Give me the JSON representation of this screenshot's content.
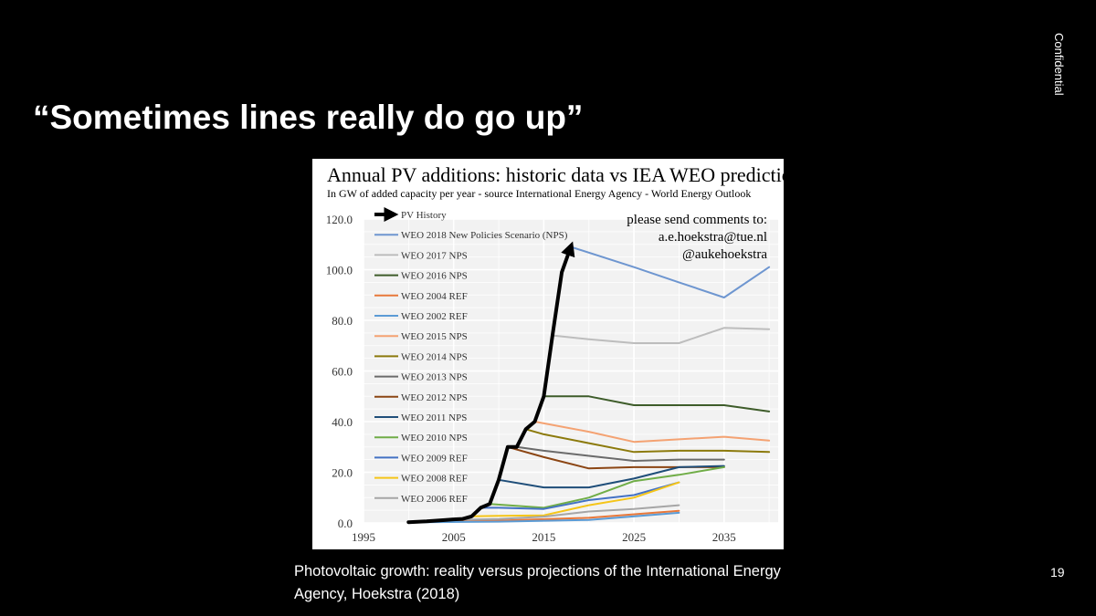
{
  "slide": {
    "title": "“Sometimes lines really do go up”",
    "confidential": "Confidential",
    "page_number": "19",
    "caption": "Photovoltaic growth: reality versus projections of the International Energy Agency, Hoekstra (2018)"
  },
  "chart_data": {
    "type": "line",
    "title": "Annual PV additions: historic data vs IEA WEO predictions",
    "subtitle": "In GW of added capacity per year - source International Energy Agency - World Energy Outlook",
    "xlabel": "",
    "ylabel": "",
    "xlim": [
      1995,
      2041
    ],
    "ylim": [
      0,
      120
    ],
    "x_ticks": [
      "1995",
      "2005",
      "2015",
      "2025",
      "2035"
    ],
    "y_ticks": [
      "0.0",
      "20.0",
      "40.0",
      "60.0",
      "80.0",
      "100.0",
      "120.0"
    ],
    "grid": true,
    "legend_position": "top-left",
    "comments": [
      "please send comments to:",
      "a.e.hoekstra@tue.nl",
      "@aukehoekstra"
    ],
    "series": [
      {
        "name": "PV History",
        "color": "#000000",
        "arrow": true,
        "points": [
          [
            2000,
            0.3
          ],
          [
            2002,
            0.6
          ],
          [
            2004,
            1.1
          ],
          [
            2005,
            1.4
          ],
          [
            2006,
            1.6
          ],
          [
            2007,
            2.6
          ],
          [
            2008,
            6.0
          ],
          [
            2009,
            7.5
          ],
          [
            2010,
            17.0
          ],
          [
            2011,
            30.0
          ],
          [
            2012,
            30.0
          ],
          [
            2013,
            37.0
          ],
          [
            2014,
            40.0
          ],
          [
            2015,
            50.0
          ],
          [
            2016,
            75.0
          ],
          [
            2017,
            99.0
          ],
          [
            2018,
            109.0
          ]
        ]
      },
      {
        "name": "WEO 2018 New Policies Scenario (NPS)",
        "color": "#6E96D0",
        "points": [
          [
            2018,
            109.0
          ],
          [
            2025,
            101.0
          ],
          [
            2030,
            95.0
          ],
          [
            2035,
            89.0
          ],
          [
            2040,
            101.0
          ]
        ]
      },
      {
        "name": "WEO 2017 NPS",
        "color": "#BDBDBD",
        "points": [
          [
            2016,
            74.0
          ],
          [
            2020,
            72.5
          ],
          [
            2025,
            71.0
          ],
          [
            2030,
            71.0
          ],
          [
            2035,
            77.0
          ],
          [
            2040,
            76.5
          ]
        ]
      },
      {
        "name": "WEO 2016 NPS",
        "color": "#3E5C2A",
        "points": [
          [
            2015,
            50.0
          ],
          [
            2020,
            50.0
          ],
          [
            2025,
            46.5
          ],
          [
            2030,
            46.5
          ],
          [
            2035,
            46.5
          ],
          [
            2040,
            44.0
          ]
        ]
      },
      {
        "name": "WEO 2004 REF",
        "color": "#E8783A",
        "points": [
          [
            2000,
            0.2
          ],
          [
            2010,
            0.9
          ],
          [
            2020,
            2.0
          ],
          [
            2030,
            4.8
          ]
        ]
      },
      {
        "name": "WEO 2002 REF",
        "color": "#5B9BD5",
        "points": [
          [
            2000,
            0.2
          ],
          [
            2010,
            0.5
          ],
          [
            2020,
            1.2
          ],
          [
            2030,
            4.0
          ]
        ]
      },
      {
        "name": "WEO 2015 NPS",
        "color": "#F4A272",
        "points": [
          [
            2014,
            40.0
          ],
          [
            2020,
            36.0
          ],
          [
            2025,
            32.0
          ],
          [
            2030,
            33.0
          ],
          [
            2035,
            34.0
          ],
          [
            2040,
            32.5
          ]
        ]
      },
      {
        "name": "WEO 2014 NPS",
        "color": "#8C7A0C",
        "points": [
          [
            2013,
            37.0
          ],
          [
            2015,
            35.0
          ],
          [
            2020,
            31.5
          ],
          [
            2025,
            28.0
          ],
          [
            2030,
            28.5
          ],
          [
            2035,
            28.5
          ],
          [
            2040,
            28.0
          ]
        ]
      },
      {
        "name": "WEO 2013 NPS",
        "color": "#6B6B6B",
        "points": [
          [
            2012,
            30.0
          ],
          [
            2015,
            28.5
          ],
          [
            2020,
            26.5
          ],
          [
            2025,
            24.5
          ],
          [
            2030,
            25.0
          ],
          [
            2035,
            25.0
          ]
        ]
      },
      {
        "name": "WEO 2012 NPS",
        "color": "#8B4513",
        "points": [
          [
            2011,
            30.0
          ],
          [
            2015,
            26.0
          ],
          [
            2020,
            21.5
          ],
          [
            2025,
            22.0
          ],
          [
            2030,
            22.0
          ],
          [
            2035,
            22.0
          ]
        ]
      },
      {
        "name": "WEO 2011 NPS",
        "color": "#1F4E79",
        "points": [
          [
            2010,
            17.0
          ],
          [
            2015,
            14.0
          ],
          [
            2020,
            14.0
          ],
          [
            2025,
            17.5
          ],
          [
            2030,
            22.0
          ],
          [
            2035,
            22.5
          ]
        ]
      },
      {
        "name": "WEO 2010 NPS",
        "color": "#70AD47",
        "points": [
          [
            2009,
            7.5
          ],
          [
            2015,
            6.0
          ],
          [
            2020,
            10.0
          ],
          [
            2025,
            16.5
          ],
          [
            2030,
            19.0
          ],
          [
            2035,
            22.0
          ]
        ]
      },
      {
        "name": "WEO 2009 REF",
        "color": "#4472C4",
        "points": [
          [
            2008,
            6.0
          ],
          [
            2010,
            6.0
          ],
          [
            2015,
            5.5
          ],
          [
            2020,
            9.0
          ],
          [
            2025,
            11.0
          ],
          [
            2030,
            16.0
          ]
        ]
      },
      {
        "name": "WEO 2008 REF",
        "color": "#F5C518",
        "points": [
          [
            2007,
            2.6
          ],
          [
            2010,
            2.8
          ],
          [
            2015,
            3.0
          ],
          [
            2020,
            7.0
          ],
          [
            2025,
            10.0
          ],
          [
            2030,
            16.0
          ]
        ]
      },
      {
        "name": "WEO 2006 REF",
        "color": "#A6A6A6",
        "points": [
          [
            2004,
            1.1
          ],
          [
            2010,
            1.5
          ],
          [
            2015,
            2.5
          ],
          [
            2020,
            4.5
          ],
          [
            2025,
            5.5
          ],
          [
            2030,
            7.0
          ]
        ]
      }
    ]
  }
}
